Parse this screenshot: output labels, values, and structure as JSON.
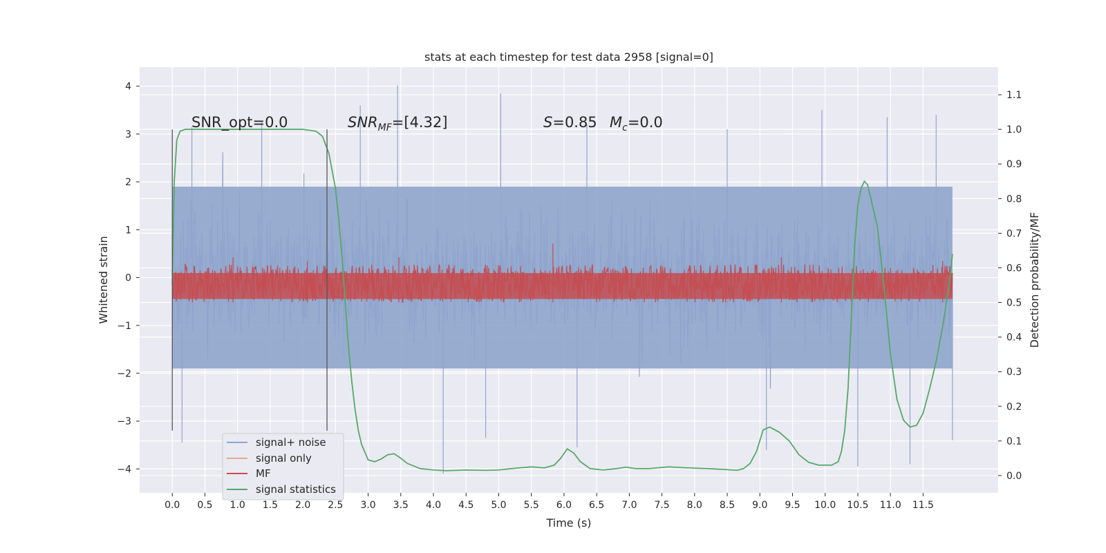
{
  "chart_data": {
    "type": "line",
    "title": "stats at each timestep for test data 2958 [signal=0]",
    "xlabel": "Time (s)",
    "ylabel": "Whitened strain",
    "y2label": "Detection probability/MF",
    "xlim": [
      -0.5,
      12.65
    ],
    "ylim": [
      -4.5,
      4.4
    ],
    "y2lim": [
      -0.05,
      1.18
    ],
    "x_ticks": [
      0.0,
      0.5,
      1.0,
      1.5,
      2.0,
      2.5,
      3.0,
      3.5,
      4.0,
      4.5,
      5.0,
      5.5,
      6.0,
      6.5,
      7.0,
      7.5,
      8.0,
      8.5,
      9.0,
      9.5,
      10.0,
      10.5,
      11.0,
      11.5
    ],
    "x_tick_labels": [
      "0.0",
      "0.5",
      "1.0",
      "1.5",
      "2.0",
      "2.5",
      "3.0",
      "3.5",
      "4.0",
      "4.5",
      "5.0",
      "5.5",
      "6.0",
      "6.5",
      "7.0",
      "7.5",
      "8.0",
      "8.5",
      "9.0",
      "9.5",
      "10.0",
      "10.5",
      "11.0",
      "11.5"
    ],
    "y_ticks": [
      -4,
      -3,
      -2,
      -1,
      0,
      1,
      2,
      3,
      4
    ],
    "y_tick_labels": [
      "−4",
      "−3",
      "−2",
      "−1",
      "0",
      "1",
      "2",
      "3",
      "4"
    ],
    "y2_ticks": [
      0.0,
      0.1,
      0.2,
      0.3,
      0.4,
      0.5,
      0.6,
      0.7,
      0.8,
      0.9,
      1.0,
      1.1
    ],
    "y2_tick_labels": [
      "0.0",
      "0.1",
      "0.2",
      "0.3",
      "0.4",
      "0.5",
      "0.6",
      "0.7",
      "0.8",
      "0.9",
      "1.0",
      "1.1"
    ],
    "grid": true,
    "legend_position": "lower-left",
    "annotations": {
      "snr_opt": "SNR_opt=0.0",
      "snr_mf_main": "SNR",
      "snr_mf_sub": "MF",
      "snr_mf_value": "=[4.32]",
      "s_symbol": "S",
      "s_value": "=0.85",
      "mc_symbol": "M",
      "mc_sub": "c",
      "mc_value": "=0.0"
    },
    "vertical_lines_x": [
      0.0,
      2.37
    ],
    "series": [
      {
        "name": "signal+ noise",
        "axis": "left",
        "color": "#8fa5cc",
        "x_range": [
          0.0,
          11.95
        ],
        "envelope": {
          "typical_low": -1.9,
          "typical_high": 1.9,
          "max_peak": 4.0,
          "min_peak": -4.1,
          "peaks": [
            [
              3.45,
              4.02
            ],
            [
              5.03,
              3.85
            ],
            [
              2.88,
              3.6
            ],
            [
              9.95,
              3.5
            ],
            [
              11.7,
              3.4
            ],
            [
              0.3,
              3.15
            ],
            [
              1.37,
              3.25
            ],
            [
              6.35,
              3.2
            ],
            [
              8.5,
              3.1
            ],
            [
              10.95,
              3.35
            ]
          ],
          "troughs": [
            [
              4.15,
              -4.1
            ],
            [
              10.5,
              -3.95
            ],
            [
              11.3,
              -3.9
            ],
            [
              0.15,
              -3.45
            ],
            [
              6.2,
              -3.55
            ],
            [
              9.1,
              -3.6
            ],
            [
              4.8,
              -3.35
            ],
            [
              11.95,
              -3.4
            ]
          ]
        }
      },
      {
        "name": "signal only",
        "axis": "left",
        "color": "#e8a88b",
        "x": [
          0.0,
          11.95
        ],
        "y": [
          0.0,
          0.0
        ]
      },
      {
        "name": "MF",
        "axis": "right",
        "color": "#c44e52",
        "x_range": [
          0.0,
          11.95
        ],
        "band": {
          "low": 0.5,
          "high": 0.61,
          "peaks": [
            [
              5.83,
              0.67
            ],
            [
              0.93,
              0.63
            ],
            [
              3.47,
              0.63
            ],
            [
              2.07,
              0.62
            ],
            [
              9.33,
              0.63
            ],
            [
              11.8,
              0.62
            ]
          ]
        }
      },
      {
        "name": "signal statistics",
        "axis": "right",
        "color": "#55a868",
        "x": [
          0.0,
          0.03,
          0.07,
          0.12,
          0.2,
          0.35,
          0.6,
          1.0,
          1.5,
          2.0,
          2.2,
          2.3,
          2.4,
          2.5,
          2.55,
          2.6,
          2.65,
          2.7,
          2.75,
          2.8,
          2.85,
          2.9,
          3.0,
          3.1,
          3.2,
          3.3,
          3.4,
          3.5,
          3.6,
          3.8,
          4.0,
          4.2,
          4.5,
          4.8,
          5.0,
          5.3,
          5.5,
          5.7,
          5.85,
          5.95,
          6.05,
          6.15,
          6.25,
          6.4,
          6.6,
          6.8,
          6.95,
          7.1,
          7.3,
          7.6,
          7.9,
          8.2,
          8.5,
          8.65,
          8.75,
          8.85,
          8.95,
          9.05,
          9.15,
          9.3,
          9.45,
          9.6,
          9.75,
          9.9,
          10.1,
          10.2,
          10.25,
          10.3,
          10.35,
          10.4,
          10.45,
          10.5,
          10.55,
          10.6,
          10.65,
          10.7,
          10.8,
          10.9,
          11.0,
          11.1,
          11.2,
          11.3,
          11.4,
          11.5,
          11.6,
          11.7,
          11.8,
          11.9,
          11.95
        ],
        "y": [
          0.55,
          0.85,
          0.97,
          0.995,
          1.0,
          1.0,
          1.0,
          1.0,
          1.0,
          1.0,
          0.995,
          0.98,
          0.93,
          0.83,
          0.74,
          0.63,
          0.5,
          0.37,
          0.27,
          0.19,
          0.13,
          0.09,
          0.045,
          0.04,
          0.048,
          0.06,
          0.063,
          0.05,
          0.035,
          0.02,
          0.016,
          0.014,
          0.016,
          0.015,
          0.016,
          0.022,
          0.025,
          0.022,
          0.03,
          0.05,
          0.077,
          0.065,
          0.04,
          0.02,
          0.016,
          0.02,
          0.024,
          0.02,
          0.02,
          0.025,
          0.022,
          0.02,
          0.017,
          0.015,
          0.02,
          0.035,
          0.07,
          0.132,
          0.14,
          0.125,
          0.1,
          0.06,
          0.038,
          0.03,
          0.03,
          0.04,
          0.07,
          0.13,
          0.25,
          0.45,
          0.66,
          0.78,
          0.83,
          0.85,
          0.84,
          0.8,
          0.72,
          0.55,
          0.35,
          0.22,
          0.16,
          0.14,
          0.145,
          0.18,
          0.25,
          0.33,
          0.43,
          0.55,
          0.64
        ]
      }
    ]
  }
}
